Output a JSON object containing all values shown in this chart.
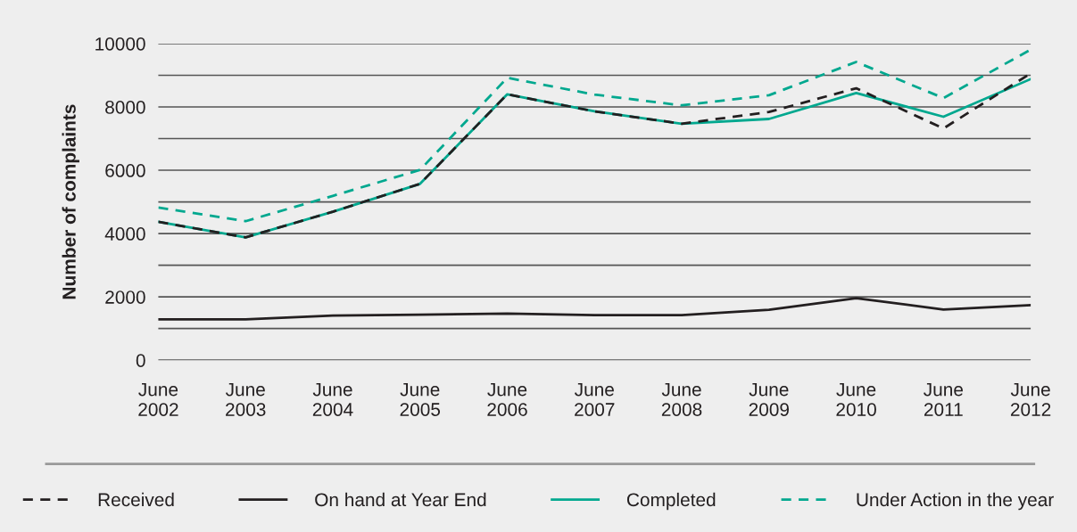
{
  "chart_data": {
    "type": "line",
    "ylabel": "Number of complaints",
    "categories": [
      "June\n2002",
      "June\n2003",
      "June\n2004",
      "June\n2005",
      "June\n2006",
      "June\n2007",
      "June\n2008",
      "June\n2009",
      "June\n2010",
      "June\n2011",
      "June\n2012"
    ],
    "series": [
      {
        "name": "Received",
        "color": "#231f20",
        "line_style": "dashed",
        "values": [
          4370,
          3880,
          4690,
          5570,
          8400,
          7860,
          7470,
          7840,
          8590,
          7320,
          9060
        ]
      },
      {
        "name": "On hand at Year End",
        "color": "#231f20",
        "line_style": "solid",
        "values": [
          1290,
          1290,
          1410,
          1440,
          1470,
          1420,
          1420,
          1590,
          1960,
          1600,
          1740
        ]
      },
      {
        "name": "Completed",
        "color": "#00a88f",
        "line_style": "solid",
        "values": [
          4370,
          3880,
          4690,
          5570,
          8400,
          7860,
          7470,
          7620,
          8440,
          7690,
          8880
        ]
      },
      {
        "name": "Under Action in the year",
        "color": "#00a88f",
        "line_style": "dashed",
        "values": [
          4820,
          4390,
          5190,
          6010,
          8920,
          8390,
          8050,
          8370,
          9420,
          8280,
          9810
        ]
      }
    ],
    "ylim": [
      0,
      10000
    ],
    "yticks": [
      0,
      {
        "value": 1000,
        "label": null
      },
      2000,
      {
        "value": 3000,
        "label": null
      },
      4000,
      {
        "value": 5000,
        "label": null
      },
      6000,
      {
        "value": 7000,
        "label": null
      },
      8000,
      {
        "value": 9000,
        "label": null
      },
      10000
    ],
    "grid": "y",
    "legend": "bottom",
    "marker": "none"
  }
}
